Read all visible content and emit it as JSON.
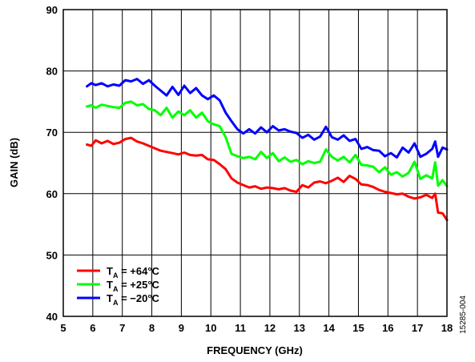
{
  "figure_id": "15285-004",
  "chart_data": {
    "type": "line",
    "xlabel": "FREQUENCY (GHz)",
    "ylabel": "GAIN (dB)",
    "xlim": [
      5,
      18
    ],
    "ylim": [
      40,
      90
    ],
    "xticks": [
      5,
      6,
      7,
      8,
      9,
      10,
      11,
      12,
      13,
      14,
      15,
      16,
      17,
      18
    ],
    "yticks": [
      40,
      50,
      60,
      70,
      80,
      90
    ],
    "grid": true,
    "legend_position": "bottom-left",
    "series": [
      {
        "name": "TA = +64°C",
        "label_main": "T",
        "label_sub": "A",
        "label_rest": " = +64°C",
        "color": "#ff0000",
        "x": [
          5.8,
          5.95,
          6.1,
          6.3,
          6.5,
          6.7,
          6.9,
          7.1,
          7.3,
          7.5,
          7.7,
          7.9,
          8.1,
          8.3,
          8.5,
          8.7,
          8.9,
          9.1,
          9.3,
          9.5,
          9.7,
          9.9,
          10.1,
          10.3,
          10.5,
          10.7,
          10.9,
          11.1,
          11.3,
          11.5,
          11.7,
          11.9,
          12.1,
          12.3,
          12.5,
          12.7,
          12.9,
          13.1,
          13.3,
          13.5,
          13.7,
          13.9,
          14.1,
          14.3,
          14.5,
          14.7,
          14.9,
          15.1,
          15.3,
          15.5,
          15.7,
          15.9,
          16.1,
          16.3,
          16.5,
          16.7,
          16.9,
          17.1,
          17.3,
          17.5,
          17.6,
          17.7,
          17.85,
          18.0
        ],
        "values": [
          68.0,
          67.8,
          68.7,
          68.2,
          68.6,
          68.1,
          68.3,
          68.9,
          69.1,
          68.5,
          68.2,
          67.8,
          67.4,
          67.0,
          66.8,
          66.6,
          66.4,
          66.7,
          66.3,
          66.2,
          66.3,
          65.6,
          65.5,
          64.8,
          64.0,
          62.5,
          61.8,
          61.4,
          61.0,
          61.2,
          60.8,
          61.0,
          60.9,
          60.7,
          60.9,
          60.5,
          60.3,
          61.4,
          61.0,
          61.8,
          62.0,
          61.7,
          62.1,
          62.6,
          61.9,
          62.9,
          62.4,
          61.5,
          61.4,
          61.1,
          60.6,
          60.3,
          60.1,
          59.9,
          60.0,
          59.5,
          59.2,
          59.4,
          59.8,
          59.3,
          60.0,
          56.9,
          56.8,
          55.7
        ]
      },
      {
        "name": "TA = +25°C",
        "label_main": "T",
        "label_sub": "A",
        "label_rest": " = +25°C",
        "color": "#00ff00",
        "x": [
          5.8,
          5.95,
          6.1,
          6.3,
          6.5,
          6.7,
          6.9,
          7.1,
          7.3,
          7.5,
          7.7,
          7.9,
          8.1,
          8.3,
          8.5,
          8.7,
          8.9,
          9.1,
          9.3,
          9.5,
          9.7,
          9.9,
          10.1,
          10.3,
          10.5,
          10.7,
          10.9,
          11.1,
          11.3,
          11.5,
          11.7,
          11.9,
          12.1,
          12.3,
          12.5,
          12.7,
          12.9,
          13.1,
          13.3,
          13.5,
          13.7,
          13.9,
          14.1,
          14.3,
          14.5,
          14.7,
          14.9,
          15.1,
          15.3,
          15.5,
          15.7,
          15.9,
          16.1,
          16.3,
          16.5,
          16.7,
          16.9,
          17.1,
          17.3,
          17.5,
          17.6,
          17.7,
          17.85,
          18.0
        ],
        "values": [
          74.2,
          74.4,
          74.0,
          74.5,
          74.3,
          74.1,
          74.0,
          74.8,
          75.0,
          74.4,
          74.6,
          73.8,
          73.6,
          72.8,
          74.0,
          72.4,
          73.4,
          72.8,
          73.6,
          72.4,
          73.2,
          71.8,
          71.3,
          71.0,
          69.2,
          66.5,
          66.1,
          65.8,
          66.0,
          65.6,
          66.8,
          65.8,
          66.6,
          65.3,
          65.9,
          65.2,
          65.5,
          64.8,
          65.3,
          65.0,
          65.2,
          67.2,
          66.0,
          65.4,
          66.0,
          65.1,
          66.3,
          64.7,
          64.6,
          64.4,
          63.5,
          64.3,
          63.1,
          63.5,
          62.8,
          63.4,
          65.2,
          62.4,
          63.0,
          62.5,
          65.1,
          61.3,
          62.2,
          61.2
        ]
      },
      {
        "name": "TA = −20°C",
        "label_main": "T",
        "label_sub": "A",
        "label_rest": " = −20°C",
        "color": "#0000ff",
        "x": [
          5.8,
          5.95,
          6.1,
          6.3,
          6.5,
          6.7,
          6.9,
          7.1,
          7.3,
          7.5,
          7.7,
          7.9,
          8.1,
          8.3,
          8.5,
          8.7,
          8.9,
          9.1,
          9.3,
          9.5,
          9.7,
          9.9,
          10.1,
          10.3,
          10.5,
          10.7,
          10.9,
          11.1,
          11.3,
          11.5,
          11.7,
          11.9,
          12.1,
          12.3,
          12.5,
          12.7,
          12.9,
          13.1,
          13.3,
          13.5,
          13.7,
          13.9,
          14.1,
          14.3,
          14.5,
          14.7,
          14.9,
          15.1,
          15.3,
          15.5,
          15.7,
          15.9,
          16.1,
          16.3,
          16.5,
          16.7,
          16.9,
          17.1,
          17.3,
          17.5,
          17.6,
          17.7,
          17.85,
          18.0
        ],
        "values": [
          77.5,
          78.0,
          77.7,
          78.0,
          77.5,
          77.8,
          77.6,
          78.5,
          78.3,
          78.7,
          77.9,
          78.5,
          77.6,
          76.8,
          76.0,
          77.4,
          76.1,
          77.6,
          76.4,
          77.2,
          76.0,
          75.4,
          76.0,
          75.2,
          73.2,
          71.8,
          70.5,
          69.8,
          70.5,
          69.8,
          70.8,
          70.0,
          71.0,
          70.3,
          70.5,
          70.1,
          69.9,
          69.1,
          69.6,
          68.8,
          69.3,
          70.9,
          69.2,
          68.8,
          69.5,
          68.6,
          68.9,
          67.3,
          67.6,
          67.1,
          67.0,
          66.1,
          66.6,
          65.9,
          67.5,
          66.7,
          68.2,
          66.0,
          66.5,
          67.3,
          68.5,
          66.0,
          67.5,
          67.2
        ]
      }
    ]
  }
}
